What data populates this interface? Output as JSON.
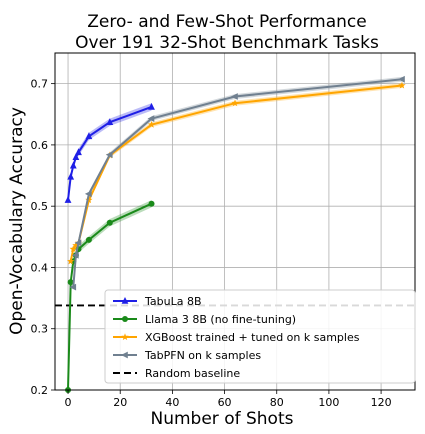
{
  "chart_data": {
    "type": "line",
    "title_lines": [
      "Zero- and Few-Shot Performance",
      "Over 191 32-Shot Benchmark Tasks"
    ],
    "xlabel": "Number of Shots",
    "ylabel": "Open-Vocabulary Accuracy",
    "xlim": [
      -5,
      133
    ],
    "ylim": [
      0.2,
      0.75
    ],
    "xticks": [
      0,
      20,
      40,
      60,
      80,
      100,
      120
    ],
    "yticks": [
      0.2,
      0.3,
      0.4,
      0.5,
      0.6,
      0.7
    ],
    "ytick_labels": [
      "0.2",
      "0.3",
      "0.4",
      "0.5",
      "0.6",
      "0.7"
    ],
    "grid": true,
    "legend_position": "lower-right",
    "series": [
      {
        "name": "TabuLa 8B",
        "color": "#1f1fe6",
        "marker": "triangle-up",
        "x": [
          0,
          1,
          2,
          3,
          4,
          8,
          16,
          32
        ],
        "y": [
          0.51,
          0.548,
          0.566,
          0.58,
          0.588,
          0.614,
          0.637,
          0.662
        ],
        "band": 0.006
      },
      {
        "name": "Llama 3 8B (no fine-tuning)",
        "color": "#1a8a1a",
        "marker": "circle",
        "x": [
          0,
          1,
          2,
          3,
          4,
          8,
          16,
          32
        ],
        "y": [
          0.2,
          0.376,
          0.41,
          0.42,
          0.43,
          0.445,
          0.473,
          0.504
        ],
        "band": 0.006
      },
      {
        "name": "XGBoost trained + tuned on k samples",
        "color": "#ffa500",
        "marker": "star",
        "x": [
          1,
          2,
          3,
          4,
          8,
          16,
          32,
          64,
          128
        ],
        "y": [
          0.41,
          0.43,
          0.436,
          0.44,
          0.51,
          0.583,
          0.633,
          0.668,
          0.697
        ],
        "band": 0.004
      },
      {
        "name": "TabPFN on k samples",
        "color": "#708090",
        "marker": "triangle-left",
        "x": [
          2,
          3,
          4,
          8,
          16,
          32,
          64,
          128
        ],
        "y": [
          0.368,
          0.42,
          0.44,
          0.52,
          0.584,
          0.643,
          0.679,
          0.707
        ],
        "band": 0.004
      }
    ],
    "baseline": {
      "name": "Random baseline",
      "y": 0.338,
      "color": "#000000"
    }
  }
}
